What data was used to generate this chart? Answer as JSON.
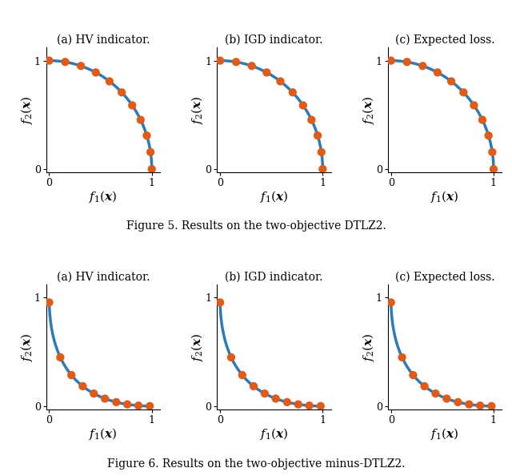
{
  "fig5_title": "Figure 5. Results on the two-objective DTLZ2.",
  "fig6_title": "Figure 6. Results on the two-objective minus-DTLZ2.",
  "row_labels": [
    "(a) HV indicator.",
    "(b) IGD indicator.",
    "(c) Expected loss."
  ],
  "ylabel": "$f_2(\\boldsymbol{x})$",
  "xlabel": "$f_1(\\boldsymbol{x})$",
  "line_color": "#2b7bba",
  "dot_color": "#e05a18",
  "line_width": 2.5,
  "dot_size": 55,
  "dtlz2_n_curve": 300,
  "dtlz2_n_dots": 11,
  "minus_dtlz2_n_dots": 10,
  "tick_fontsize": 9,
  "label_fontsize": 11,
  "caption_fontsize": 10,
  "fig_title_fontsize": 10
}
